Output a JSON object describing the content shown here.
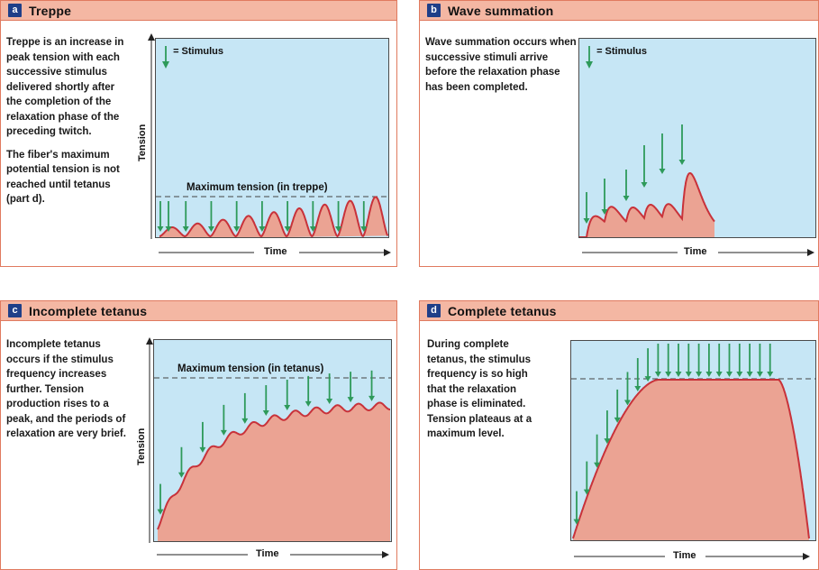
{
  "panels": {
    "a": {
      "letter": "a",
      "title": "Treppe",
      "desc": [
        "Treppe is an increase in peak tension with each successive stimulus delivered shortly after the completion of the relaxation phase of the preceding twitch.",
        "The fiber's maximum potential tension is not reached until tetanus (part d)."
      ],
      "stimulus_label": "= Stimulus",
      "max_label": "Maximum tension (in treppe)",
      "x_label": "Time",
      "y_label": "Tension"
    },
    "b": {
      "letter": "b",
      "title": "Wave summation",
      "desc": [
        "Wave summation occurs when successive stimuli arrive before the relaxation phase has been completed."
      ],
      "stimulus_label": "= Stimulus",
      "x_label": "Time"
    },
    "c": {
      "letter": "c",
      "title": "Incomplete tetanus",
      "desc": [
        "Incomplete tetanus occurs if the stimulus frequency increases further. Tension production rises to a peak, and the periods of relaxation are very brief."
      ],
      "max_label": "Maximum tension (in tetanus)",
      "x_label": "Time",
      "y_label": "Tension"
    },
    "d": {
      "letter": "d",
      "title": "Complete tetanus",
      "desc": [
        "During complete tetanus, the stimulus frequency is so high that the relaxation phase is eliminated. Tension plateaus at a maximum level."
      ],
      "x_label": "Time"
    }
  },
  "colors": {
    "plot_bg": "#c6e6f5",
    "curve_fill": "#eba393",
    "curve_stroke": "#c8323a",
    "arrow": "#2e9a5a",
    "header": "#f4b7a3",
    "border": "#e07a5f",
    "badge": "#1f3f88"
  }
}
